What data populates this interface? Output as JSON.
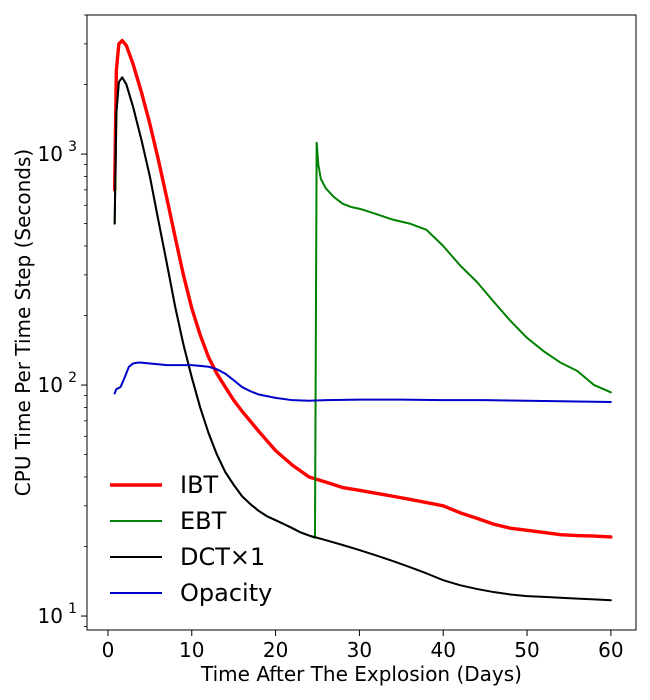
{
  "chart_data": {
    "type": "line",
    "title": "",
    "xlabel": "Time After The Explosion (Days)",
    "ylabel": "CPU Time Per Time Step (Seconds)",
    "xscale": "linear",
    "yscale": "log",
    "xlim": [
      -2.5,
      63
    ],
    "ylim": [
      8.7,
      4000
    ],
    "xticks": [
      0,
      10,
      20,
      30,
      40,
      50,
      60
    ],
    "xtick_labels": [
      "0",
      "10",
      "20",
      "30",
      "40",
      "50",
      "60"
    ],
    "yticks": [
      10,
      100,
      1000
    ],
    "ytick_labels": [
      {
        "base": "10",
        "exp": "1"
      },
      {
        "base": "10",
        "exp": "2"
      },
      {
        "base": "10",
        "exp": "3"
      }
    ],
    "grid": false,
    "legend_position": "lower-left",
    "series": [
      {
        "name": "IBT",
        "color": "#ff0000",
        "width": 3.4,
        "x": [
          0.8,
          1.0,
          1.3,
          1.7,
          2.2,
          3,
          4,
          5,
          6,
          7,
          8,
          9,
          10,
          11,
          12,
          13,
          14,
          15,
          16,
          18,
          20,
          22,
          24,
          26,
          28,
          30,
          32,
          34,
          36,
          38,
          40,
          42,
          44,
          46,
          48,
          50,
          52,
          54,
          56,
          58,
          60
        ],
        "y": [
          700,
          2300,
          3000,
          3100,
          2950,
          2450,
          1850,
          1350,
          950,
          650,
          440,
          300,
          215,
          165,
          132,
          112,
          98,
          86,
          77,
          63,
          52,
          45,
          40,
          38,
          36,
          35,
          34,
          33,
          32,
          31,
          30,
          28,
          26.5,
          25,
          24,
          23.5,
          23,
          22.5,
          22.3,
          22.2,
          22
        ]
      },
      {
        "name": "EBT",
        "color": "#008000",
        "width": 2,
        "x": [
          0.8,
          1.0,
          1.3,
          1.7,
          2.2,
          3,
          4,
          5,
          6,
          7,
          8,
          9,
          10,
          11,
          12,
          13,
          14,
          15,
          16,
          17,
          18,
          19,
          20,
          21,
          22,
          23,
          24,
          24.7,
          24.9,
          25.1,
          25.4,
          26,
          27,
          28,
          29,
          30,
          31,
          32,
          34,
          36,
          38,
          40,
          42,
          44,
          46,
          48,
          50,
          52,
          54,
          56,
          58,
          60
        ],
        "y": [
          500,
          1500,
          2050,
          2150,
          2000,
          1600,
          1150,
          800,
          520,
          340,
          220,
          150,
          108,
          80,
          62,
          50,
          42,
          37,
          33,
          30.5,
          28.5,
          27,
          26,
          25,
          24,
          23,
          22.3,
          21.8,
          1120,
          900,
          780,
          710,
          650,
          610,
          590,
          580,
          565,
          550,
          520,
          500,
          470,
          400,
          330,
          280,
          230,
          190,
          160,
          140,
          125,
          115,
          100,
          93
        ]
      },
      {
        "name": "DCT×1",
        "color": "#000000",
        "width": 2,
        "x": [
          0.8,
          1.0,
          1.3,
          1.7,
          2.2,
          3,
          4,
          5,
          6,
          7,
          8,
          9,
          10,
          11,
          12,
          13,
          14,
          15,
          16,
          17,
          18,
          19,
          20,
          21,
          22,
          23,
          24,
          25,
          26,
          28,
          30,
          32,
          34,
          36,
          38,
          40,
          42,
          44,
          46,
          48,
          50,
          52,
          54,
          56,
          58,
          60
        ],
        "y": [
          500,
          1500,
          2050,
          2150,
          2000,
          1600,
          1150,
          800,
          520,
          340,
          220,
          150,
          108,
          80,
          62,
          50,
          42,
          37,
          33,
          30.5,
          28.5,
          27,
          26,
          25,
          24,
          23,
          22.3,
          21.8,
          21.3,
          20.3,
          19.3,
          18.3,
          17.3,
          16.3,
          15.3,
          14.3,
          13.6,
          13.1,
          12.7,
          12.4,
          12.2,
          12.1,
          12.0,
          11.9,
          11.8,
          11.7
        ]
      },
      {
        "name": "Opacity",
        "color": "#0000c8",
        "width": 2,
        "x": [
          0.8,
          1.0,
          1.5,
          2.0,
          2.5,
          3,
          3.5,
          4,
          5,
          6,
          7,
          8,
          9,
          10,
          11,
          12,
          13,
          14,
          15,
          16,
          17,
          18,
          20,
          22,
          24,
          26,
          30,
          35,
          40,
          45,
          50,
          55,
          60
        ],
        "y": [
          92,
          96,
          98,
          108,
          120,
          124,
          125,
          125,
          124,
          123,
          122,
          122,
          122,
          122,
          121,
          120,
          117,
          112,
          105,
          98,
          94,
          91,
          88,
          86,
          85.5,
          86,
          86.5,
          86.5,
          86,
          86,
          85.5,
          85,
          84.5
        ]
      }
    ]
  }
}
